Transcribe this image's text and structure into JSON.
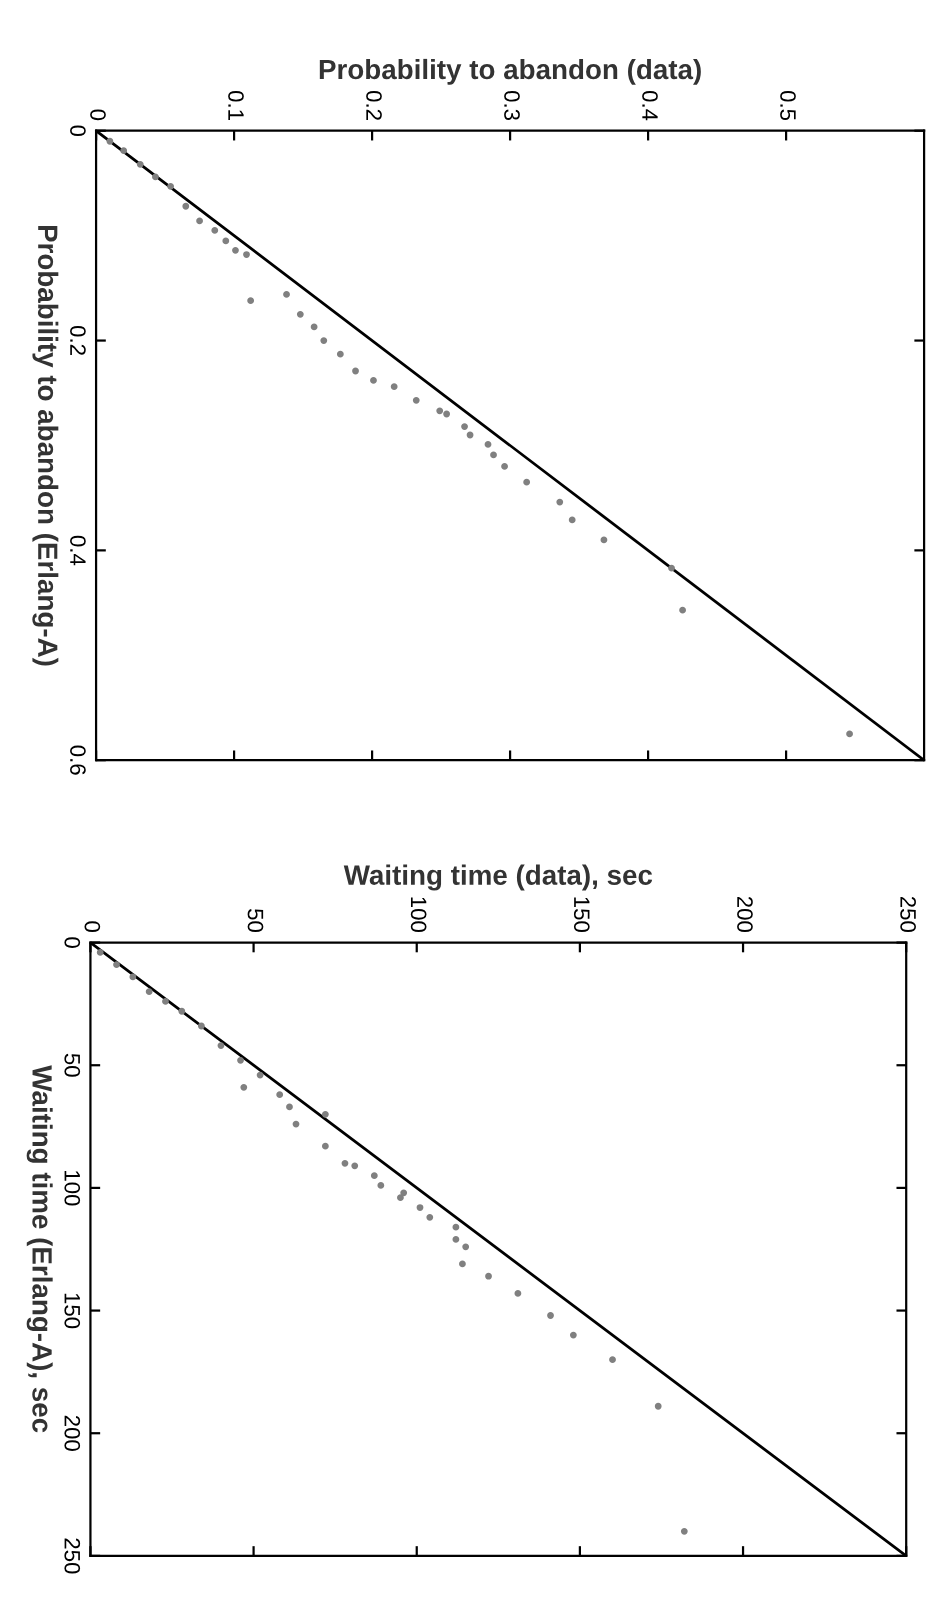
{
  "chart_data": [
    {
      "type": "scatter",
      "xlabel": "Probability to abandon (data)",
      "ylabel": "Probability to abandon (Erlang-A)",
      "xlim": [
        0,
        0.6
      ],
      "ylim": [
        0.6,
        0
      ],
      "xticks": [
        0,
        0.1,
        0.2,
        0.3,
        0.4,
        0.5
      ],
      "yticks": [
        0,
        0.2,
        0.4,
        0.6
      ],
      "grid": false,
      "legend": false,
      "series": [
        {
          "marker": "circle",
          "color": "#808080",
          "x": [
            0.01,
            0.02,
            0.032,
            0.043,
            0.054,
            0.065,
            0.075,
            0.086,
            0.094,
            0.101,
            0.109,
            0.112,
            0.138,
            0.148,
            0.158,
            0.165,
            0.177,
            0.188,
            0.201,
            0.216,
            0.232,
            0.249,
            0.254,
            0.267,
            0.271,
            0.284,
            0.288,
            0.296,
            0.312,
            0.336,
            0.345,
            0.368,
            0.417,
            0.425,
            0.546
          ],
          "values": [
            0.01,
            0.019,
            0.032,
            0.044,
            0.053,
            0.072,
            0.086,
            0.095,
            0.105,
            0.114,
            0.118,
            0.162,
            0.156,
            0.175,
            0.187,
            0.2,
            0.213,
            0.229,
            0.238,
            0.244,
            0.257,
            0.267,
            0.27,
            0.282,
            0.29,
            0.299,
            0.309,
            0.32,
            0.335,
            0.354,
            0.371,
            0.39,
            0.417,
            0.457,
            0.575
          ]
        },
        {
          "type": "line",
          "color": "#000000",
          "marker": "none",
          "x": [
            0,
            0.6
          ],
          "values": [
            0,
            0.6
          ]
        }
      ]
    },
    {
      "type": "scatter",
      "xlabel": "Waiting time (data), sec",
      "ylabel": "Waiting time (Erlang-A), sec",
      "xlim": [
        0,
        250
      ],
      "ylim": [
        250,
        0
      ],
      "xticks": [
        0,
        50,
        100,
        150,
        200,
        250
      ],
      "yticks": [
        0,
        50,
        100,
        150,
        200,
        250
      ],
      "grid": false,
      "legend": false,
      "series": [
        {
          "marker": "circle",
          "color": "#808080",
          "x": [
            3,
            8,
            13,
            18,
            23,
            28,
            34,
            40,
            46,
            47,
            52,
            58,
            61,
            63,
            72,
            72,
            78,
            81,
            87,
            89,
            95,
            96,
            101,
            104,
            112,
            112,
            115,
            114,
            122,
            131,
            141,
            148,
            160,
            174,
            182
          ],
          "values": [
            4,
            9,
            14,
            20,
            24,
            28,
            34,
            42,
            48,
            59,
            54,
            62,
            67,
            74,
            70,
            83,
            90,
            91,
            95,
            99,
            104,
            102,
            108,
            112,
            116,
            121,
            124,
            131,
            136,
            143,
            152,
            160,
            170,
            189,
            240
          ]
        },
        {
          "type": "line",
          "color": "#000000",
          "marker": "none",
          "x": [
            0,
            250
          ],
          "values": [
            0,
            250
          ]
        }
      ]
    }
  ]
}
